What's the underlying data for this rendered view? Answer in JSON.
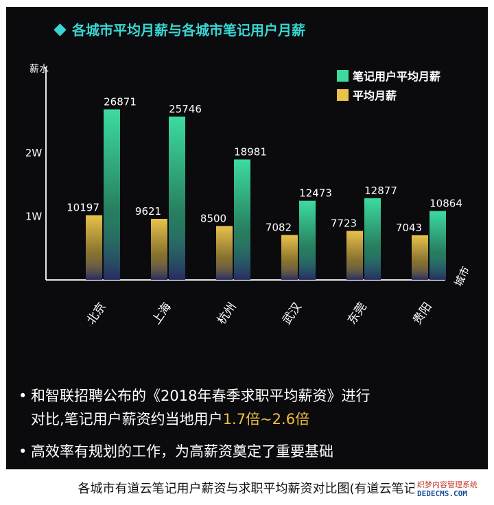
{
  "header": {
    "title": "各城市平均月薪与各城市笔记用户月薪"
  },
  "chart_data": {
    "type": "bar",
    "title": "各城市平均月薪与各城市笔记用户月薪",
    "xlabel": "城市",
    "ylabel": "薪水",
    "categories": [
      "北京",
      "上海",
      "杭州",
      "武汉",
      "东莞",
      "贵阳"
    ],
    "series": [
      {
        "name": "平均月薪",
        "values": [
          10197,
          9621,
          8500,
          7082,
          7723,
          7043
        ],
        "color": "#e8c24a"
      },
      {
        "name": "笔记用户平均月薪",
        "values": [
          26871,
          25746,
          18981,
          12473,
          12877,
          10864
        ],
        "color": "#3ddba0"
      }
    ],
    "yticks": [
      {
        "value": 10000,
        "label": "1W"
      },
      {
        "value": 20000,
        "label": "2W"
      }
    ],
    "ylim": [
      0,
      32000
    ],
    "legend_position": "top-right",
    "grid": false
  },
  "notes": {
    "line1": "和智联招聘公布的《2018年春季求职平均薪资》进行",
    "line2_prefix": "对比,笔记用户薪资约当地用户",
    "line2_highlight": "1.7倍~2.6倍",
    "line3": "高效率有规划的工作，为高薪资奠定了重要基础",
    "bullet": "•"
  },
  "caption": "各城市有道云笔记用户薪资与求职平均薪资对比图(有道云笔记",
  "watermark": {
    "top": "织梦内容管理系统",
    "bottom": "DEDECMS.COM"
  }
}
